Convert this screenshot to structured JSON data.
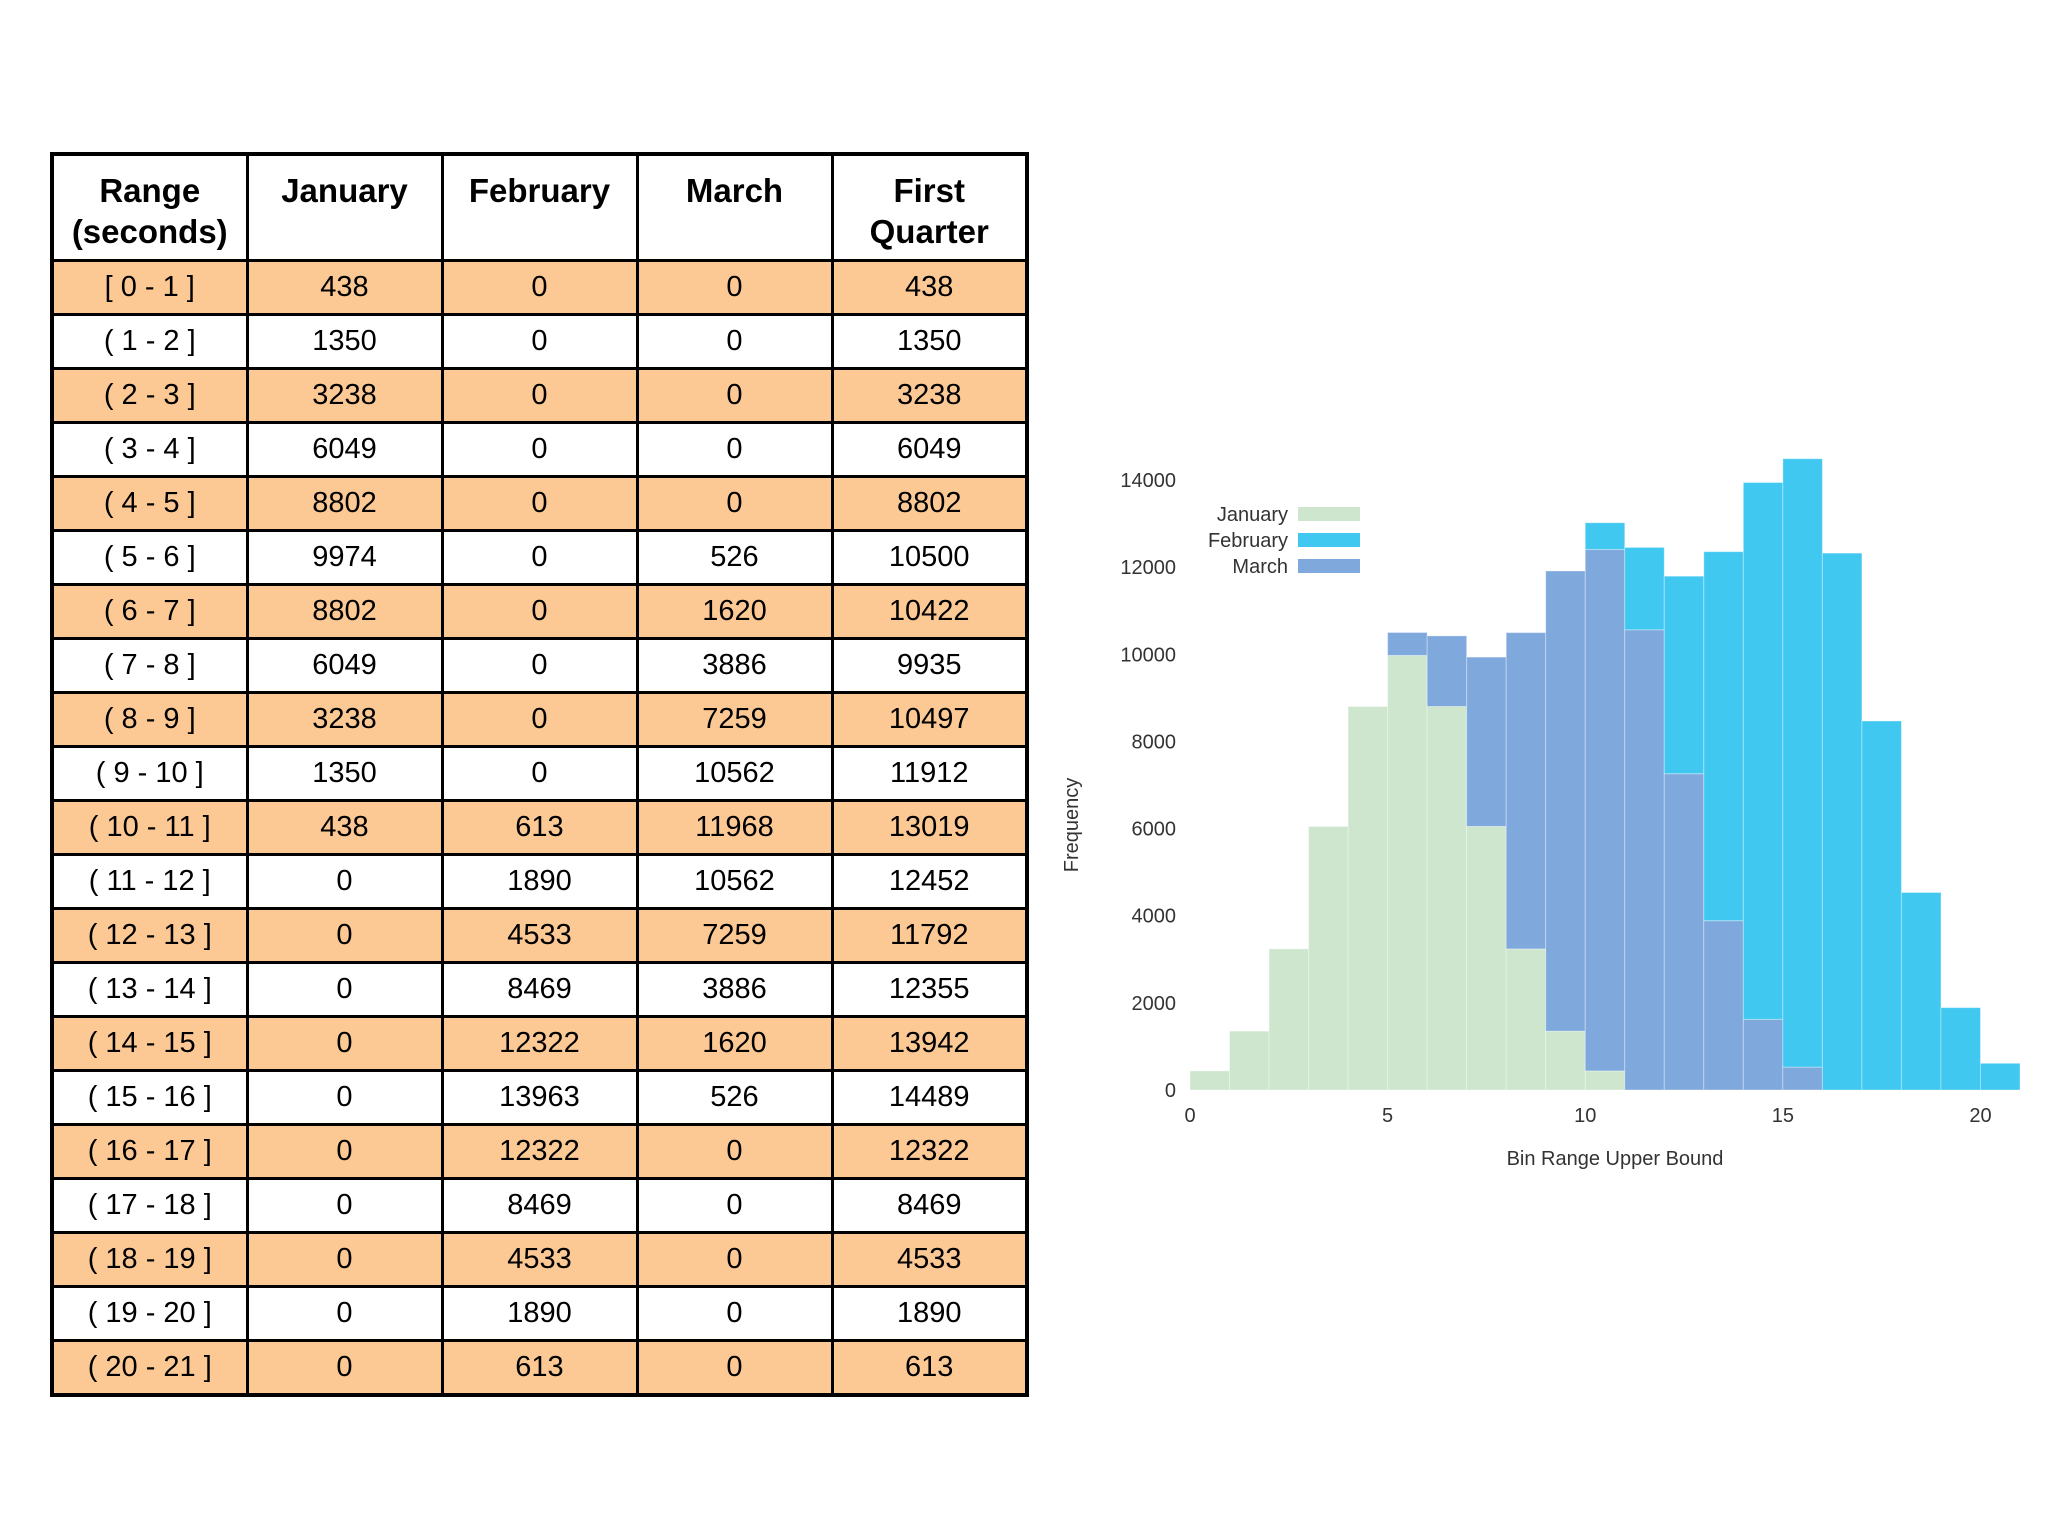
{
  "table": {
    "headers": [
      "Range\n(seconds)",
      "January",
      "February",
      "March",
      "First\nQuarter"
    ],
    "rows": [
      [
        "[ 0 - 1 ]",
        "438",
        "0",
        "0",
        "438"
      ],
      [
        "( 1 - 2 ]",
        "1350",
        "0",
        "0",
        "1350"
      ],
      [
        "( 2 - 3 ]",
        "3238",
        "0",
        "0",
        "3238"
      ],
      [
        "( 3 - 4 ]",
        "6049",
        "0",
        "0",
        "6049"
      ],
      [
        "( 4 - 5 ]",
        "8802",
        "0",
        "0",
        "8802"
      ],
      [
        "( 5 - 6 ]",
        "9974",
        "0",
        "526",
        "10500"
      ],
      [
        "( 6 - 7 ]",
        "8802",
        "0",
        "1620",
        "10422"
      ],
      [
        "( 7 - 8 ]",
        "6049",
        "0",
        "3886",
        "9935"
      ],
      [
        "( 8 - 9 ]",
        "3238",
        "0",
        "7259",
        "10497"
      ],
      [
        "( 9 - 10 ]",
        "1350",
        "0",
        "10562",
        "11912"
      ],
      [
        "( 10 - 11 ]",
        "438",
        "613",
        "11968",
        "13019"
      ],
      [
        "( 11 - 12 ]",
        "0",
        "1890",
        "10562",
        "12452"
      ],
      [
        "( 12 - 13 ]",
        "0",
        "4533",
        "7259",
        "11792"
      ],
      [
        "( 13 - 14 ]",
        "0",
        "8469",
        "3886",
        "12355"
      ],
      [
        "( 14 - 15 ]",
        "0",
        "12322",
        "1620",
        "13942"
      ],
      [
        "( 15 - 16 ]",
        "0",
        "13963",
        "526",
        "14489"
      ],
      [
        "( 16 - 17 ]",
        "0",
        "12322",
        "0",
        "12322"
      ],
      [
        "( 17 - 18 ]",
        "0",
        "8469",
        "0",
        "8469"
      ],
      [
        "( 18 - 19 ]",
        "0",
        "4533",
        "0",
        "4533"
      ],
      [
        "( 19 - 20 ]",
        "0",
        "1890",
        "0",
        "1890"
      ],
      [
        "( 20 - 21 ]",
        "0",
        "613",
        "0",
        "613"
      ]
    ],
    "colors": {
      "odd_row": "#fcc995",
      "even_row": "#ffffff"
    }
  },
  "chart_data": {
    "type": "bar",
    "stacked": true,
    "title": "",
    "xlabel": "Bin Range Upper Bound",
    "ylabel": "Frequency",
    "xlim": [
      0,
      21
    ],
    "ylim": [
      0,
      14000
    ],
    "x_ticks": [
      0,
      5,
      10,
      15,
      20
    ],
    "y_ticks": [
      0,
      2000,
      4000,
      6000,
      8000,
      10000,
      12000,
      14000
    ],
    "grid": false,
    "legend_position": "top-left",
    "bin_lower_edges": [
      0,
      1,
      2,
      3,
      4,
      5,
      6,
      7,
      8,
      9,
      10,
      11,
      12,
      13,
      14,
      15,
      16,
      17,
      18,
      19,
      20
    ],
    "series": [
      {
        "name": "January",
        "color": "#cde6cd",
        "values": [
          438,
          1350,
          3238,
          6049,
          8802,
          9974,
          8802,
          6049,
          3238,
          1350,
          438,
          0,
          0,
          0,
          0,
          0,
          0,
          0,
          0,
          0,
          0
        ]
      },
      {
        "name": "February",
        "color": "#41c8f0",
        "values": [
          0,
          0,
          0,
          0,
          0,
          0,
          0,
          0,
          0,
          0,
          613,
          1890,
          4533,
          8469,
          12322,
          13963,
          12322,
          8469,
          4533,
          1890,
          613
        ]
      },
      {
        "name": "March",
        "color": "#7fa8dc",
        "values": [
          0,
          0,
          0,
          0,
          0,
          526,
          1620,
          3886,
          7259,
          10562,
          11968,
          10562,
          7259,
          3886,
          1620,
          526,
          0,
          0,
          0,
          0,
          0
        ]
      }
    ]
  }
}
